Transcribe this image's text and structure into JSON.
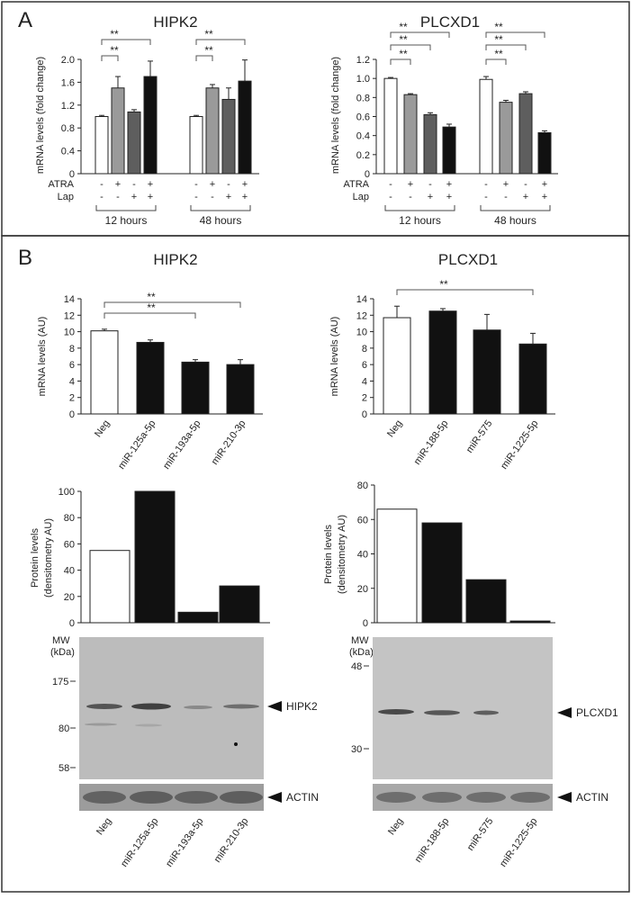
{
  "panels": {
    "A": {
      "label": "A"
    },
    "B": {
      "label": "B"
    }
  },
  "treatment_rows": {
    "atra_label": "ATRA",
    "lap_label": "Lap"
  },
  "timepoints": {
    "t12": "12 hours",
    "t48": "48 hours"
  },
  "treatment_signs": {
    "atra": [
      "-",
      "+",
      "-",
      "+"
    ],
    "lap": [
      "-",
      "-",
      "+",
      "+"
    ]
  },
  "significance": "**",
  "blot_labels": {
    "mw_label": "MW",
    "kda_label": "(kDa)",
    "hipk2_markers": [
      "175",
      "80",
      "58"
    ],
    "plcxd1_markers": [
      "48",
      "30"
    ],
    "hipk2_arrow": "HIPK2",
    "plcxd1_arrow": "PLCXD1",
    "actin_arrow": "ACTIN"
  },
  "chart_data": [
    {
      "id": "A-HIPK2",
      "type": "bar",
      "title": "HIPK2",
      "ylabel": "mRNA levels (fold change)",
      "ylim": [
        0,
        2.0
      ],
      "yticks": [
        "0",
        "0.4",
        "0.8",
        "1.2",
        "1.6",
        "2.0"
      ],
      "groups": [
        "12 hours",
        "48 hours"
      ],
      "values": [
        1.0,
        1.5,
        1.08,
        1.7,
        1.0,
        1.5,
        1.3,
        1.62
      ],
      "errors": [
        0.02,
        0.2,
        0.04,
        0.27,
        0.02,
        0.06,
        0.2,
        0.37
      ],
      "colors": [
        "#ffffff",
        "#9a9a9a",
        "#5e5e5e",
        "#111111",
        "#ffffff",
        "#9a9a9a",
        "#5e5e5e",
        "#111111"
      ],
      "brackets": [
        [
          0,
          1
        ],
        [
          0,
          3
        ],
        [
          4,
          5
        ],
        [
          4,
          7
        ]
      ]
    },
    {
      "id": "A-PLCXD1",
      "type": "bar",
      "title": "PLCXD1",
      "ylabel": "mRNA levels (fold change)",
      "ylim": [
        0,
        1.2
      ],
      "yticks": [
        "0",
        "0.2",
        "0.4",
        "0.6",
        "0.8",
        "1.0",
        "1.2"
      ],
      "groups": [
        "12 hours",
        "48 hours"
      ],
      "values": [
        1.0,
        0.83,
        0.62,
        0.49,
        0.99,
        0.75,
        0.84,
        0.43
      ],
      "errors": [
        0.01,
        0.01,
        0.02,
        0.03,
        0.03,
        0.02,
        0.02,
        0.02
      ],
      "colors": [
        "#ffffff",
        "#9a9a9a",
        "#5e5e5e",
        "#111111",
        "#ffffff",
        "#9a9a9a",
        "#5e5e5e",
        "#111111"
      ],
      "brackets": [
        [
          0,
          1
        ],
        [
          0,
          2
        ],
        [
          0,
          3
        ],
        [
          4,
          5
        ],
        [
          4,
          6
        ],
        [
          4,
          7
        ]
      ]
    },
    {
      "id": "B-HIPK2-mRNA",
      "type": "bar",
      "title": "HIPK2",
      "ylabel": "mRNA levels (AU)",
      "ylim": [
        0,
        14
      ],
      "yticks": [
        "0",
        "2",
        "4",
        "6",
        "8",
        "10",
        "12",
        "14"
      ],
      "categories": [
        "Neg",
        "miR-125a-5p",
        "miR-193a-5p",
        "miR-210-3p"
      ],
      "values": [
        10.1,
        8.7,
        6.3,
        6.0
      ],
      "errors": [
        0.2,
        0.3,
        0.3,
        0.6
      ],
      "colors": [
        "#ffffff",
        "#111111",
        "#111111",
        "#111111"
      ],
      "brackets": [
        [
          0,
          2
        ],
        [
          0,
          3
        ]
      ]
    },
    {
      "id": "B-PLCXD1-mRNA",
      "type": "bar",
      "title": "PLCXD1",
      "ylabel": "mRNA levels (AU)",
      "ylim": [
        0,
        14
      ],
      "yticks": [
        "0",
        "2",
        "4",
        "6",
        "8",
        "10",
        "12",
        "14"
      ],
      "categories": [
        "Neg",
        "miR-188-5p",
        "miR-575",
        "miR-1225-5p"
      ],
      "values": [
        11.7,
        12.5,
        10.2,
        8.5
      ],
      "errors": [
        1.4,
        0.3,
        1.9,
        1.3
      ],
      "colors": [
        "#ffffff",
        "#111111",
        "#111111",
        "#111111"
      ],
      "brackets": [
        [
          0,
          3
        ]
      ]
    },
    {
      "id": "B-HIPK2-protein",
      "type": "bar",
      "ylabel": [
        "Protein levels",
        "(densitometry AU)"
      ],
      "ylim": [
        0,
        100
      ],
      "yticks": [
        "0",
        "20",
        "40",
        "60",
        "80",
        "100"
      ],
      "categories": [
        "Neg",
        "miR-125a-5p",
        "miR-193a-5p",
        "miR-210-3p"
      ],
      "values": [
        55,
        100,
        8,
        28
      ],
      "colors": [
        "#ffffff",
        "#111111",
        "#111111",
        "#111111"
      ]
    },
    {
      "id": "B-PLCXD1-protein",
      "type": "bar",
      "ylabel": [
        "Protein levels",
        "(densitometry AU)"
      ],
      "ylim": [
        0,
        80
      ],
      "yticks": [
        "0",
        "20",
        "40",
        "60",
        "80"
      ],
      "categories": [
        "Neg",
        "miR-188-5p",
        "miR-575",
        "miR-1225-5p"
      ],
      "values": [
        66,
        58,
        25,
        1
      ],
      "colors": [
        "#ffffff",
        "#111111",
        "#111111",
        "#111111"
      ]
    }
  ]
}
